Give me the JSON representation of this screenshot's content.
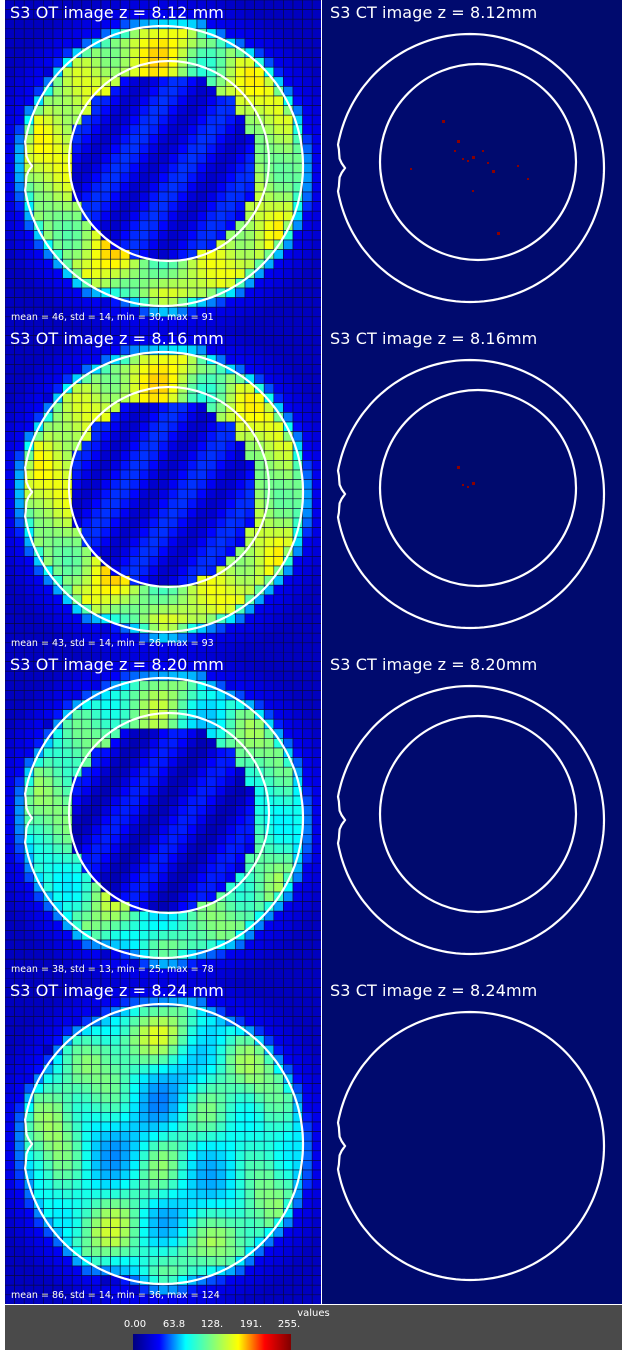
{
  "panels": [
    {
      "ot_title": "S3 OT image z = 8.12 mm",
      "ct_title": "S3 CT image z = 8.12mm",
      "stats": "mean = 46, std = 14, min = 30, max = 91",
      "has_inner": true,
      "ring_level": 0.55,
      "core_level": 0.12,
      "ct_spots": 14
    },
    {
      "ot_title": "S3 OT image z = 8.16 mm",
      "ct_title": "S3 CT image z = 8.16mm",
      "stats": "mean = 43, std = 14, min = 26, max = 93",
      "has_inner": true,
      "ring_level": 0.55,
      "core_level": 0.12,
      "ct_spots": 4
    },
    {
      "ot_title": "S3 OT image z = 8.20 mm",
      "ct_title": "S3 CT image z = 8.20mm",
      "stats": "mean = 38, std = 13, min = 25, max = 78",
      "has_inner": true,
      "ring_level": 0.45,
      "core_level": 0.1,
      "ct_spots": 0
    },
    {
      "ot_title": "S3 OT image z = 8.24 mm",
      "ct_title": "S3 CT image z = 8.24mm",
      "stats": "mean = 86, std = 14, min = 36, max = 124",
      "has_inner": false,
      "ring_level": 0.55,
      "core_level": 0.38,
      "ct_spots": 0
    }
  ],
  "colorbar": {
    "title": "values",
    "ticks": [
      "0.00",
      "63.8",
      "128.",
      "191.",
      "255."
    ],
    "range": [
      0,
      255
    ]
  },
  "colors": {
    "background": "#000a6e",
    "outline": "#ffffff",
    "grid": "#0a0a3a",
    "ct_spot": "#8b0000"
  }
}
